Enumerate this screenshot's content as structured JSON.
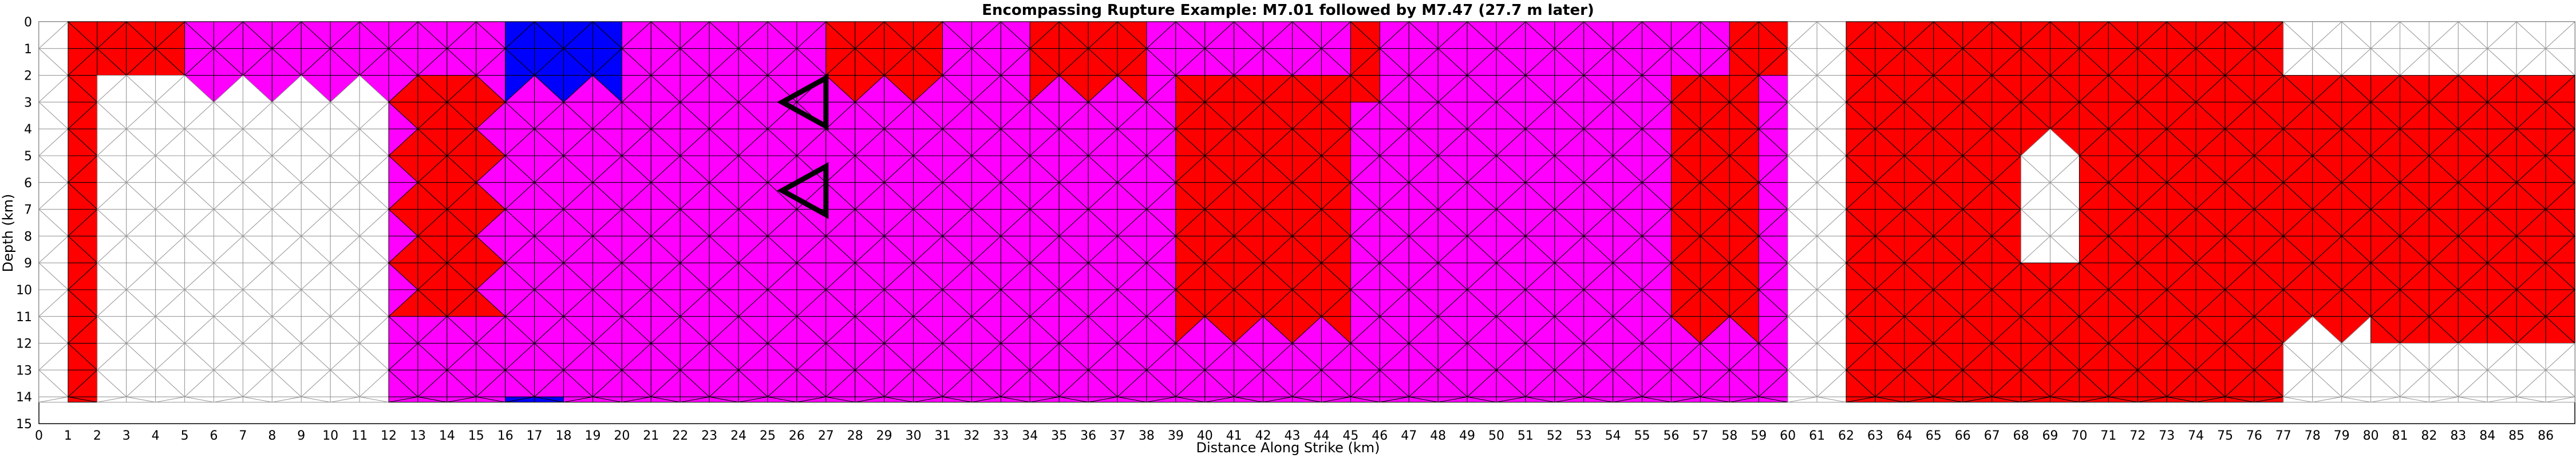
{
  "chart_data": {
    "type": "heatmap",
    "title": "Encompassing Rupture Example: M7.01 followed by M7.47 (27.7 m later)",
    "xlabel": "Distance Along Strike (km)",
    "ylabel": "Depth (km)",
    "xlim": [
      0,
      87
    ],
    "ylim": [
      15,
      0
    ],
    "x_ticks": [
      0,
      1,
      2,
      3,
      4,
      5,
      6,
      7,
      8,
      9,
      10,
      11,
      12,
      13,
      14,
      15,
      16,
      17,
      18,
      19,
      20,
      21,
      22,
      23,
      24,
      25,
      26,
      27,
      28,
      29,
      30,
      31,
      32,
      33,
      34,
      35,
      36,
      37,
      38,
      39,
      40,
      41,
      42,
      43,
      44,
      45,
      46,
      47,
      48,
      49,
      50,
      51,
      52,
      53,
      54,
      55,
      56,
      57,
      58,
      59,
      60,
      61,
      62,
      63,
      64,
      65,
      66,
      67,
      68,
      69,
      70,
      71,
      72,
      73,
      74,
      75,
      76,
      77,
      78,
      79,
      80,
      81,
      82,
      83,
      84,
      85,
      86
    ],
    "y_ticks": [
      0,
      1,
      2,
      3,
      4,
      5,
      6,
      7,
      8,
      9,
      10,
      11,
      12,
      13,
      14,
      15
    ],
    "grid": true,
    "colors": {
      "background": "#ffffff",
      "first_rupture_only": "#ff0000",
      "both_ruptures": "#ff00ff",
      "second_rupture_only": "#0000ff",
      "unruptured": "#ffffff",
      "grid_line": "#999999",
      "triangle_edge": "#000000",
      "hypocenter_marker": "#000000"
    },
    "fault_extent": {
      "depth_min": 0,
      "depth_max": 14.2
    },
    "region_rules": {
      "default": "none",
      "rects": [
        {
          "x": [
            1,
            5
          ],
          "y": [
            0,
            14.2
          ],
          "value": "red"
        },
        {
          "x": [
            5,
            12
          ],
          "y": [
            0,
            2.4
          ],
          "value": "magenta"
        },
        {
          "x": [
            12,
            16
          ],
          "y": [
            0,
            14.2
          ],
          "value": "magenta"
        },
        {
          "x": [
            12.5,
            15.5
          ],
          "y": [
            2,
            11
          ],
          "value": "red"
        },
        {
          "x": [
            16,
            20
          ],
          "y": [
            0,
            14.2
          ],
          "value": "magenta"
        },
        {
          "x": [
            20,
            34
          ],
          "y": [
            0,
            14.2
          ],
          "value": "magenta"
        },
        {
          "x": [
            27,
            31
          ],
          "y": [
            0,
            2.5
          ],
          "value": "red"
        },
        {
          "x": [
            34,
            60
          ],
          "y": [
            0,
            14.2
          ],
          "value": "magenta"
        },
        {
          "x": [
            34,
            38
          ],
          "y": [
            0,
            2.5
          ],
          "value": "red"
        },
        {
          "x": [
            39,
            45
          ],
          "y": [
            2.3,
            11.5
          ],
          "value": "red"
        },
        {
          "x": [
            56,
            59
          ],
          "y": [
            2.3,
            11.5
          ],
          "value": "red"
        },
        {
          "x": [
            58,
            60
          ],
          "y": [
            0,
            2
          ],
          "value": "red"
        },
        {
          "x": [
            45,
            46
          ],
          "y": [
            0,
            2.8
          ],
          "value": "red"
        },
        {
          "x": [
            62,
            77
          ],
          "y": [
            0,
            14.2
          ],
          "value": "red"
        },
        {
          "x": [
            77,
            87
          ],
          "y": [
            2.3,
            11.8
          ],
          "value": "red"
        }
      ],
      "whites": [
        {
          "x": [
            2,
            5
          ],
          "y": [
            2,
            14.2
          ]
        },
        {
          "x": [
            5,
            12
          ],
          "y": [
            2.4,
            11
          ]
        },
        {
          "x": [
            60,
            62
          ],
          "y": [
            0,
            14.2
          ]
        },
        {
          "x": [
            68,
            70
          ],
          "y": [
            4.5,
            9
          ]
        },
        {
          "x": [
            77,
            80
          ],
          "y": [
            11.5,
            14.2
          ]
        },
        {
          "x": [
            80,
            87
          ],
          "y": [
            0,
            2.2
          ]
        }
      ],
      "blues": [
        {
          "x": [
            16,
            20
          ],
          "y": [
            0,
            2.4
          ]
        },
        {
          "x": [
            16,
            18
          ],
          "y": [
            13.8,
            14.2
          ]
        }
      ]
    },
    "hypocenter_markers": [
      {
        "x": 26.5,
        "y": 3,
        "label": ""
      },
      {
        "x": 26.5,
        "y": 6.3,
        "label": ""
      }
    ]
  }
}
